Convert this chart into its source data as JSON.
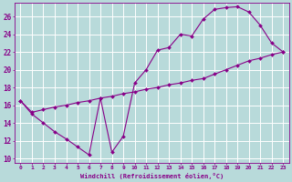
{
  "xlabel": "Windchill (Refroidissement éolien,°C)",
  "bg_color": "#b8dada",
  "line_color": "#880088",
  "grid_color": "#ffffff",
  "xlim": [
    -0.5,
    23.5
  ],
  "ylim": [
    9.5,
    27.5
  ],
  "yticks": [
    10,
    12,
    14,
    16,
    18,
    20,
    22,
    24,
    26
  ],
  "xticks": [
    0,
    1,
    2,
    3,
    4,
    5,
    6,
    7,
    8,
    9,
    10,
    11,
    12,
    13,
    14,
    15,
    16,
    17,
    18,
    19,
    20,
    21,
    22,
    23
  ],
  "curve1_x": [
    0,
    1,
    2,
    3,
    4,
    5,
    6,
    7,
    8,
    9,
    10,
    11,
    12,
    13,
    14,
    15,
    16,
    17,
    18,
    19,
    20,
    21,
    22,
    23
  ],
  "curve1_y": [
    16.5,
    15.0,
    14.0,
    13.0,
    12.2,
    11.3,
    10.4,
    16.8,
    10.7,
    12.5,
    18.5,
    20.0,
    22.2,
    22.5,
    24.0,
    23.8,
    25.7,
    26.8,
    27.0,
    27.1,
    26.5,
    25.0,
    23.0,
    22.0
  ],
  "curve2_x": [
    0,
    1,
    2,
    3,
    4,
    5,
    6,
    7,
    8,
    9,
    10,
    11,
    12,
    13,
    14,
    15,
    16,
    17,
    18,
    19,
    20,
    21,
    22,
    23
  ],
  "curve2_y": [
    16.5,
    15.2,
    15.5,
    15.8,
    16.0,
    16.3,
    16.5,
    16.8,
    17.0,
    17.3,
    17.5,
    17.8,
    18.0,
    18.3,
    18.5,
    18.8,
    19.0,
    19.5,
    20.0,
    20.5,
    21.0,
    21.3,
    21.7,
    22.0
  ]
}
